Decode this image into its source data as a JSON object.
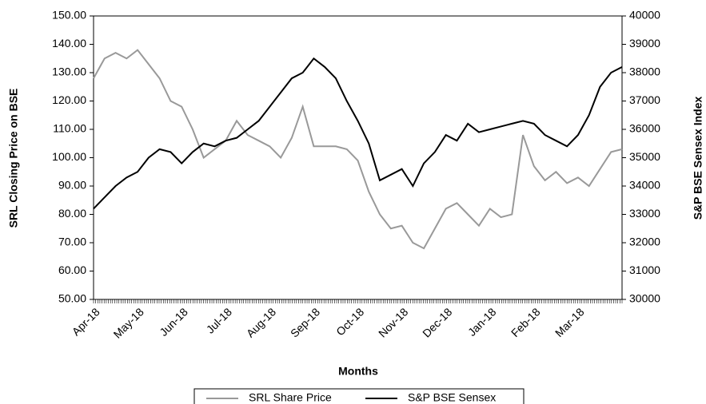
{
  "chart_data": {
    "type": "line",
    "xlabel": "Months",
    "ylabel": "SRL Closing Price on BSE",
    "y2label": "S&P BSE Sensex Index",
    "categories": [
      "Apr-18",
      null,
      null,
      null,
      "May-18",
      null,
      null,
      null,
      "Jun-18",
      null,
      null,
      null,
      "Jul-18",
      null,
      null,
      null,
      "Aug-18",
      null,
      null,
      null,
      "Sep-18",
      null,
      null,
      null,
      "Oct-18",
      null,
      null,
      null,
      "Nov-18",
      null,
      null,
      null,
      "Dec-18",
      null,
      null,
      null,
      "Jan-18",
      null,
      null,
      null,
      "Feb-18",
      null,
      null,
      null,
      "Mar-18",
      null,
      null,
      null,
      null
    ],
    "series": [
      {
        "name": "SRL Share Price",
        "color": "#999999",
        "axis": "y",
        "values": [
          128,
          135,
          137,
          135,
          138,
          133,
          128,
          120,
          118,
          110,
          100,
          103,
          106,
          113,
          108,
          106,
          104,
          100,
          107,
          118,
          104,
          104,
          104,
          103,
          99,
          88,
          80,
          75,
          76,
          70,
          68,
          75,
          82,
          84,
          80,
          76,
          82,
          79,
          80,
          108,
          97,
          92,
          95,
          91,
          93,
          90,
          96,
          102,
          103
        ]
      },
      {
        "name": "S&P BSE Sensex",
        "color": "#000000",
        "axis": "y2",
        "values": [
          33200,
          33600,
          34000,
          34300,
          34500,
          35000,
          35300,
          35200,
          34800,
          35200,
          35500,
          35400,
          35600,
          35700,
          36000,
          36300,
          36800,
          37300,
          37800,
          38000,
          38500,
          38200,
          37800,
          37000,
          36300,
          35500,
          34200,
          34400,
          34600,
          34000,
          34800,
          35200,
          35800,
          35600,
          36200,
          35900,
          36000,
          36100,
          36200,
          36300,
          36200,
          35800,
          35600,
          35400,
          35800,
          36500,
          37500,
          38000,
          38200
        ]
      }
    ],
    "ylim": [
      50,
      150
    ],
    "yticks": [
      {
        "value": 50,
        "label": "50.00"
      },
      {
        "value": 60,
        "label": "60.00"
      },
      {
        "value": 70,
        "label": "70.00"
      },
      {
        "value": 80,
        "label": "80.00"
      },
      {
        "value": 90,
        "label": "90.00"
      },
      {
        "value": 100,
        "label": "100.00"
      },
      {
        "value": 110,
        "label": "110.00"
      },
      {
        "value": 120,
        "label": "120.00"
      },
      {
        "value": 130,
        "label": "130.00"
      },
      {
        "value": 140,
        "label": "140.00"
      },
      {
        "value": 150,
        "label": "150.00"
      }
    ],
    "y2lim": [
      30000,
      40000
    ],
    "y2ticks": [
      30000,
      31000,
      32000,
      33000,
      34000,
      35000,
      36000,
      37000,
      38000,
      39000,
      40000
    ]
  }
}
